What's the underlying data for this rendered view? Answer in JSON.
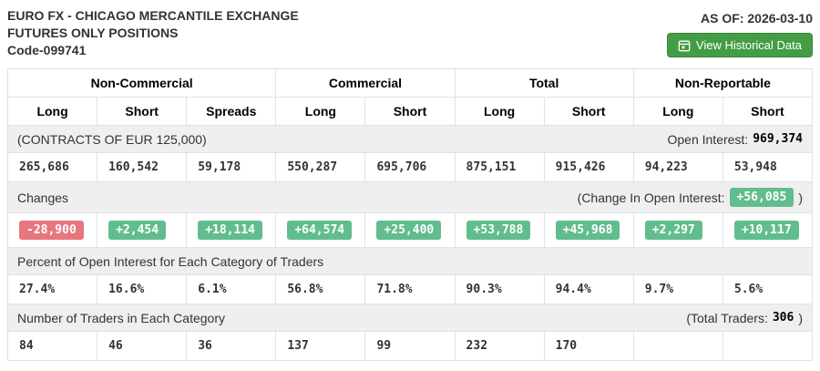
{
  "header": {
    "title_line1": "EURO FX - CHICAGO MERCANTILE EXCHANGE",
    "title_line2": "FUTURES ONLY POSITIONS",
    "code": "Code-099741",
    "as_of": "AS OF: 2026-03-10",
    "historical_button_label": "View Historical Data"
  },
  "colors": {
    "btn-green": "#449d44",
    "badge-green": "#62bd8e",
    "badge-red": "#e8767f",
    "band-bg": "#efefef",
    "border": "#dee2e6"
  },
  "table": {
    "groups": [
      {
        "label": "Non-Commercial",
        "span": 3
      },
      {
        "label": "Commercial",
        "span": 2
      },
      {
        "label": "Total",
        "span": 2
      },
      {
        "label": "Non-Reportable",
        "span": 2
      }
    ],
    "columns": [
      "Long",
      "Short",
      "Spreads",
      "Long",
      "Short",
      "Long",
      "Short",
      "Long",
      "Short"
    ],
    "sections": [
      {
        "name": "positions",
        "band": {
          "left": "(CONTRACTS OF EUR 125,000)",
          "right_text": "Open Interest:",
          "right_value": "969,374",
          "right_close": ""
        },
        "row": [
          "265,686",
          "160,542",
          "59,178",
          "550,287",
          "695,706",
          "875,151",
          "915,426",
          "94,223",
          "53,948"
        ],
        "badges": false
      },
      {
        "name": "changes",
        "band": {
          "left": "Changes",
          "right_text": "(Change In Open Interest:",
          "right_badge": "+56,085",
          "right_close": ")"
        },
        "row": [
          "-28,900",
          "+2,454",
          "+18,114",
          "+64,574",
          "+25,400",
          "+53,788",
          "+45,968",
          "+2,297",
          "+10,117"
        ],
        "badges": true
      },
      {
        "name": "percent-of-open-interest",
        "band": {
          "left": "Percent of Open Interest for Each Category of Traders"
        },
        "row": [
          "27.4%",
          "16.6%",
          "6.1%",
          "56.8%",
          "71.8%",
          "90.3%",
          "94.4%",
          "9.7%",
          "5.6%"
        ],
        "badges": false
      },
      {
        "name": "number-of-traders",
        "band": {
          "left": "Number of Traders in Each Category",
          "right_text": "(Total Traders:",
          "right_value": "306",
          "right_close": ")"
        },
        "row": [
          "84",
          "46",
          "36",
          "137",
          "99",
          "232",
          "170",
          "",
          ""
        ],
        "badges": false
      }
    ]
  }
}
